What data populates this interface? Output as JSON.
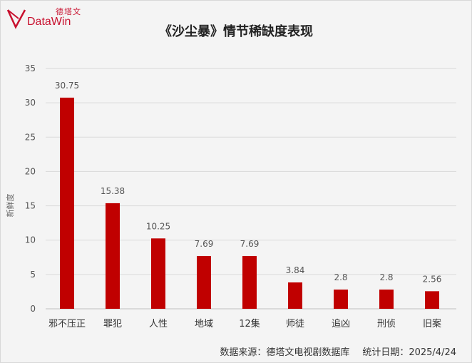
{
  "logo": {
    "cn": "德塔文",
    "en": "DataWin"
  },
  "footer": {
    "source": "数据来源：德塔文电视剧数据库",
    "date": "统计日期：2025/4/24"
  },
  "colors": {
    "bar": "#c00000",
    "grid": "#d9d9d9"
  },
  "chart_data": {
    "type": "bar",
    "title": "《沙尘暴》情节稀缺度表现",
    "ylabel": "新鲜度",
    "xlabel": "",
    "ylim": [
      0,
      35
    ],
    "yticks": [
      0,
      5,
      10,
      15,
      20,
      25,
      30,
      35
    ],
    "grid": true,
    "categories": [
      "邪不压正",
      "罪犯",
      "人性",
      "地域",
      "12集",
      "师徒",
      "追凶",
      "刑侦",
      "旧案"
    ],
    "values": [
      30.75,
      15.38,
      10.25,
      7.69,
      7.69,
      3.84,
      2.8,
      2.8,
      2.56
    ],
    "value_labels": [
      "30.75",
      "15.38",
      "10.25",
      "7.69",
      "7.69",
      "3.84",
      "2.8",
      "2.8",
      "2.56"
    ]
  }
}
